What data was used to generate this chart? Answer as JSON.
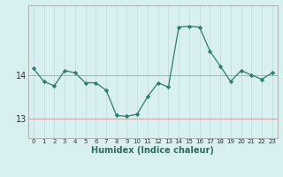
{
  "x": [
    0,
    1,
    2,
    3,
    4,
    5,
    6,
    7,
    8,
    9,
    10,
    11,
    12,
    13,
    14,
    15,
    16,
    17,
    18,
    19,
    20,
    21,
    22,
    23
  ],
  "y": [
    14.15,
    13.85,
    13.75,
    14.1,
    14.05,
    13.82,
    13.82,
    13.65,
    13.07,
    13.05,
    13.1,
    13.5,
    13.82,
    13.72,
    15.1,
    15.12,
    15.1,
    14.55,
    14.2,
    13.85,
    14.1,
    14.0,
    13.9,
    14.05
  ],
  "line_color": "#2e7d6e",
  "marker": "D",
  "marker_size": 2.2,
  "bg_color": "#d8f0f0",
  "xlabel": "Humidex (Indice chaleur)",
  "yticks": [
    13,
    14
  ],
  "ylim": [
    12.55,
    15.6
  ],
  "xlim": [
    -0.5,
    23.5
  ],
  "xtick_labels": [
    "0",
    "1",
    "2",
    "3",
    "4",
    "5",
    "6",
    "7",
    "8",
    "9",
    "10",
    "11",
    "12",
    "13",
    "14",
    "15",
    "16",
    "17",
    "18",
    "19",
    "20",
    "21",
    "22",
    "23"
  ],
  "vline_color": "#c0d8d8",
  "hline_color": "#d08080",
  "ytick_fontsize": 7,
  "xtick_fontsize": 5,
  "xlabel_fontsize": 7
}
